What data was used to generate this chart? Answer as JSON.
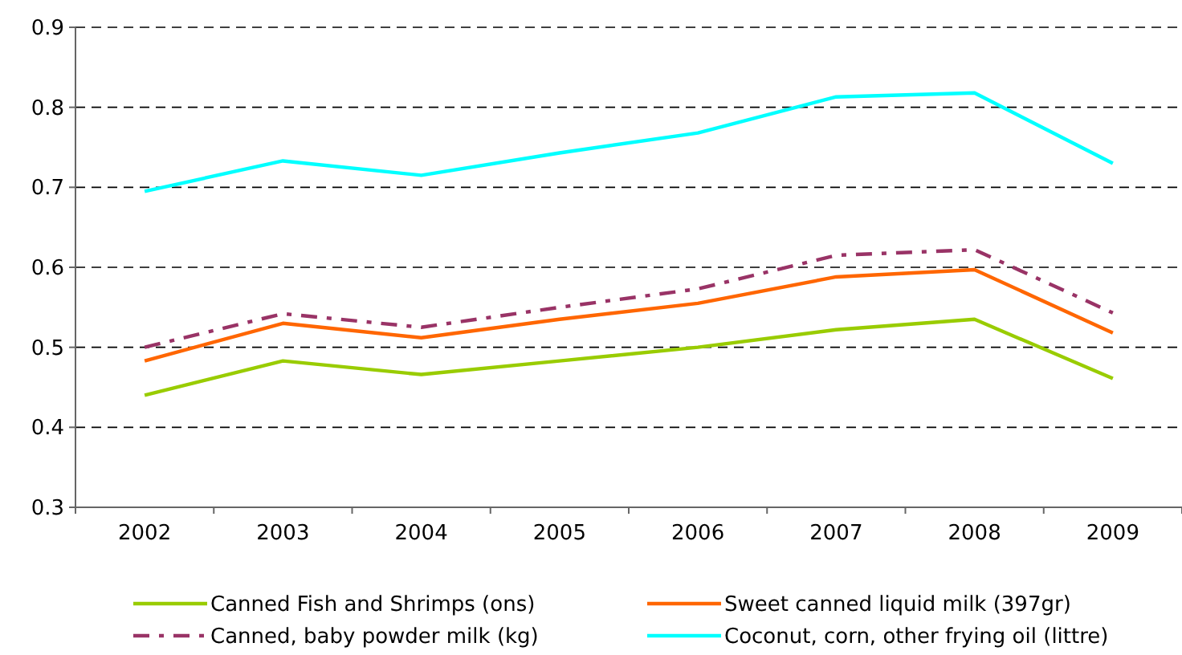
{
  "chart_data": {
    "type": "line",
    "categories": [
      "2002",
      "2003",
      "2004",
      "2005",
      "2006",
      "2007",
      "2008",
      "2009"
    ],
    "series": [
      {
        "name": "Canned Fish and Shrimps (ons)",
        "color": "#99cc00",
        "values": [
          0.44,
          0.483,
          0.466,
          0.483,
          0.5,
          0.522,
          0.535,
          0.461
        ]
      },
      {
        "name": "Sweet canned liquid milk (397gr)",
        "color": "#ff6600",
        "values": [
          0.483,
          0.53,
          0.512,
          0.535,
          0.555,
          0.588,
          0.597,
          0.518
        ]
      },
      {
        "name": "Canned, baby powder milk (kg)",
        "color": "#993366",
        "line_style": "dashed",
        "values": [
          0.5,
          0.542,
          0.525,
          0.55,
          0.573,
          0.615,
          0.622,
          0.543
        ]
      },
      {
        "name": "Coconut, corn, other frying oil (littre)",
        "color": "#00ffff",
        "values": [
          0.695,
          0.733,
          0.715,
          0.743,
          0.768,
          0.813,
          0.818,
          0.73
        ]
      }
    ],
    "ylim": [
      0.3,
      0.9
    ],
    "yticks": [
      0.3,
      0.4,
      0.5,
      0.6,
      0.7,
      0.8,
      0.9
    ],
    "grid": "y",
    "legend": "bottom",
    "marker": "none"
  }
}
